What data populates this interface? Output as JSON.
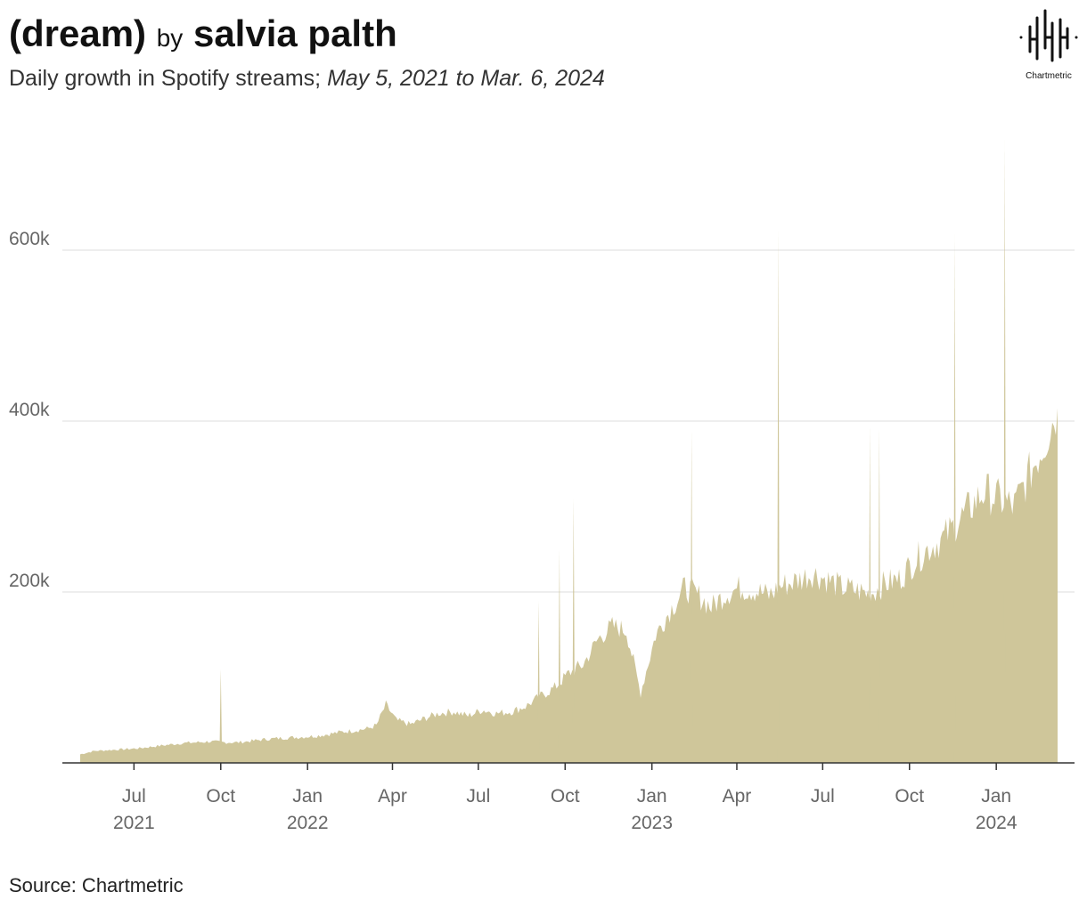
{
  "header": {
    "title_song": "(dream)",
    "title_by": "by",
    "title_artist": "salvia palth",
    "subtitle_metric": "Daily growth in Spotify streams;",
    "subtitle_range": "May 5, 2021 to Mar. 6, 2024"
  },
  "logo": {
    "name": "Chartmetric"
  },
  "source": "Source: Chartmetric",
  "colors": {
    "area": "#cfc69a",
    "grid": "#dddddd",
    "axis": "#333333"
  },
  "chart_data": {
    "type": "area",
    "title": "(dream) by salvia palth",
    "subtitle": "Daily growth in Spotify streams; May 5, 2021 to Mar. 6, 2024",
    "xlabel": "",
    "ylabel": "",
    "x_range": [
      "2021-05-05",
      "2024-03-06"
    ],
    "ylim": [
      0,
      620000
    ],
    "grid": true,
    "legend": "none",
    "y_ticks": [
      {
        "value": 200000,
        "label": "200k"
      },
      {
        "value": 400000,
        "label": "400k"
      },
      {
        "value": 600000,
        "label": "600k"
      }
    ],
    "x_ticks": [
      {
        "date": "2021-07-01",
        "label": "Jul",
        "year": "2021"
      },
      {
        "date": "2021-10-01",
        "label": "Oct",
        "year": ""
      },
      {
        "date": "2022-01-01",
        "label": "Jan",
        "year": "2022"
      },
      {
        "date": "2022-04-01",
        "label": "Apr",
        "year": ""
      },
      {
        "date": "2022-07-01",
        "label": "Jul",
        "year": ""
      },
      {
        "date": "2022-10-01",
        "label": "Oct",
        "year": ""
      },
      {
        "date": "2023-01-01",
        "label": "Jan",
        "year": "2023"
      },
      {
        "date": "2023-04-01",
        "label": "Apr",
        "year": ""
      },
      {
        "date": "2023-07-01",
        "label": "Jul",
        "year": ""
      },
      {
        "date": "2023-10-01",
        "label": "Oct",
        "year": ""
      },
      {
        "date": "2024-01-01",
        "label": "Jan",
        "year": "2024"
      }
    ],
    "series": [
      {
        "x": [
          "2021-05-05",
          "2021-05-20",
          "2021-06-05",
          "2021-06-20",
          "2021-07-05",
          "2021-07-20",
          "2021-08-05",
          "2021-08-20",
          "2021-09-05",
          "2021-09-20",
          "2021-10-05",
          "2021-10-20",
          "2021-11-05",
          "2021-11-20",
          "2021-12-05",
          "2021-12-20",
          "2022-01-05",
          "2022-01-20",
          "2022-02-05",
          "2022-02-20",
          "2022-03-05",
          "2022-03-15",
          "2022-03-25",
          "2022-04-05",
          "2022-04-20",
          "2022-05-05",
          "2022-05-20",
          "2022-06-05",
          "2022-06-20",
          "2022-07-05",
          "2022-07-20",
          "2022-08-05",
          "2022-08-20",
          "2022-09-05",
          "2022-09-20",
          "2022-10-05",
          "2022-10-20",
          "2022-11-05",
          "2022-11-20",
          "2022-12-05",
          "2022-12-20",
          "2023-01-05",
          "2023-01-20",
          "2023-02-05",
          "2023-02-20",
          "2023-03-05",
          "2023-03-20",
          "2023-04-05",
          "2023-04-20",
          "2023-05-05",
          "2023-05-20",
          "2023-06-05",
          "2023-06-20",
          "2023-07-05",
          "2023-07-20",
          "2023-08-05",
          "2023-08-20",
          "2023-09-05",
          "2023-09-20",
          "2023-10-05",
          "2023-10-20",
          "2023-11-05",
          "2023-11-20",
          "2023-12-05",
          "2023-12-20",
          "2024-01-05",
          "2024-01-20",
          "2024-02-05",
          "2024-02-20",
          "2024-03-06"
        ],
        "values": [
          10000,
          14000,
          15000,
          16000,
          17000,
          19000,
          21000,
          23000,
          24000,
          25000,
          24000,
          24000,
          26000,
          28000,
          29000,
          30000,
          31000,
          33000,
          36000,
          38000,
          40000,
          44000,
          68000,
          50000,
          45000,
          52000,
          58000,
          60000,
          55000,
          62000,
          58000,
          60000,
          66000,
          78000,
          88000,
          105000,
          115000,
          145000,
          160000,
          155000,
          82000,
          150000,
          178000,
          205000,
          195000,
          182000,
          198000,
          205000,
          202000,
          196000,
          208000,
          214000,
          222000,
          215000,
          206000,
          202000,
          198000,
          210000,
          215000,
          235000,
          250000,
          262000,
          280000,
          300000,
          318000,
          308000,
          300000,
          338000,
          372000,
          415000
        ]
      }
    ],
    "spikes": [
      {
        "x": "2021-10-01",
        "y": 110000
      },
      {
        "x": "2022-09-03",
        "y": 190000
      },
      {
        "x": "2022-09-25",
        "y": 250000
      },
      {
        "x": "2022-10-10",
        "y": 310000
      },
      {
        "x": "2023-02-12",
        "y": 390000
      },
      {
        "x": "2023-05-15",
        "y": 625000
      },
      {
        "x": "2023-08-20",
        "y": 395000
      },
      {
        "x": "2023-08-30",
        "y": 392000
      },
      {
        "x": "2023-11-18",
        "y": 620000
      },
      {
        "x": "2024-01-10",
        "y": 730000
      }
    ]
  }
}
